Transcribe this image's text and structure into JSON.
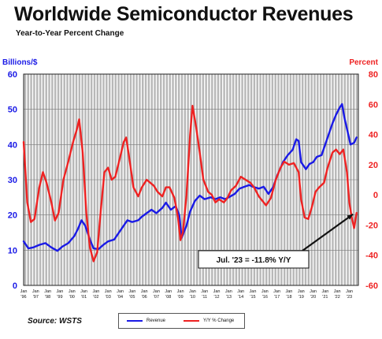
{
  "header": {
    "title": "Worldwide Semiconductor Revenues",
    "subtitle": "Year-to-Year Percent Change"
  },
  "footer": {
    "source": "Source: WSTS"
  },
  "colors": {
    "revenue": "#1a1ae6",
    "yoy": "#ee2222",
    "bars": "#b8b8b8",
    "grid": "#888888"
  },
  "chart_data": {
    "type": "line",
    "x_start": 1996.0,
    "x_end": 2023.75,
    "left_axis": {
      "label": "Billions/$",
      "min": 0,
      "max": 60,
      "ticks": [
        0,
        10,
        20,
        30,
        40,
        50,
        60
      ]
    },
    "right_axis": {
      "label": "Percent",
      "min": -60,
      "max": 80,
      "ticks": [
        -60,
        -40,
        -20,
        0,
        20,
        40,
        60,
        80
      ]
    },
    "tick_years": [
      "'96",
      "'97",
      "'98",
      "'99",
      "'00",
      "'01",
      "'02",
      "'03",
      "'04",
      "'05",
      "'06",
      "'07",
      "'08",
      "'09",
      "'10",
      "'11",
      "'12",
      "'13",
      "'14",
      "'15",
      "'16",
      "'17",
      "'18",
      "'19",
      "'20",
      "'21",
      "'22",
      "'23"
    ],
    "tick_month": "Jan",
    "annotation": {
      "text": "Jul. '23 = -11.8% Y/Y",
      "x": 2023.5,
      "y": -11.8
    },
    "legend": {
      "placement": "bottom"
    },
    "series": [
      {
        "name": "Revenue",
        "axis": "left",
        "color": "#1a1ae6",
        "points": [
          [
            1996.0,
            12.5
          ],
          [
            1996.4,
            10.5
          ],
          [
            1996.8,
            10.8
          ],
          [
            1997.3,
            11.5
          ],
          [
            1997.8,
            12
          ],
          [
            1998.3,
            10.8
          ],
          [
            1998.8,
            9.8
          ],
          [
            1999.2,
            11
          ],
          [
            1999.7,
            12
          ],
          [
            2000.2,
            14
          ],
          [
            2000.5,
            16
          ],
          [
            2000.8,
            18.5
          ],
          [
            2001.1,
            17
          ],
          [
            2001.5,
            13
          ],
          [
            2001.8,
            10.5
          ],
          [
            2002.2,
            10.3
          ],
          [
            2002.6,
            11.5
          ],
          [
            2003.0,
            12.5
          ],
          [
            2003.5,
            13
          ],
          [
            2003.8,
            14.5
          ],
          [
            2004.2,
            16.5
          ],
          [
            2004.6,
            18.5
          ],
          [
            2005.0,
            18
          ],
          [
            2005.5,
            18.5
          ],
          [
            2005.8,
            19.5
          ],
          [
            2006.2,
            20.5
          ],
          [
            2006.6,
            21.5
          ],
          [
            2007.0,
            20.5
          ],
          [
            2007.5,
            22
          ],
          [
            2007.8,
            23.5
          ],
          [
            2008.2,
            21.5
          ],
          [
            2008.6,
            22.5
          ],
          [
            2008.9,
            20
          ],
          [
            2009.1,
            13.5
          ],
          [
            2009.5,
            17
          ],
          [
            2009.8,
            21
          ],
          [
            2010.2,
            24
          ],
          [
            2010.6,
            25.5
          ],
          [
            2011.0,
            24.5
          ],
          [
            2011.5,
            25
          ],
          [
            2011.9,
            24.5
          ],
          [
            2012.3,
            25
          ],
          [
            2012.7,
            24.5
          ],
          [
            2013.0,
            25
          ],
          [
            2013.5,
            26
          ],
          [
            2013.9,
            27.5
          ],
          [
            2014.3,
            28
          ],
          [
            2014.7,
            28.5
          ],
          [
            2015.0,
            28
          ],
          [
            2015.5,
            27.5
          ],
          [
            2015.9,
            28
          ],
          [
            2016.3,
            26
          ],
          [
            2016.7,
            28
          ],
          [
            2017.0,
            31
          ],
          [
            2017.5,
            35
          ],
          [
            2017.9,
            37
          ],
          [
            2018.3,
            38.5
          ],
          [
            2018.6,
            41.5
          ],
          [
            2018.8,
            41
          ],
          [
            2019.0,
            35
          ],
          [
            2019.4,
            33
          ],
          [
            2019.7,
            34.5
          ],
          [
            2020.0,
            35
          ],
          [
            2020.3,
            36.5
          ],
          [
            2020.7,
            37
          ],
          [
            2021.0,
            40
          ],
          [
            2021.3,
            43
          ],
          [
            2021.6,
            46
          ],
          [
            2021.9,
            48.5
          ],
          [
            2022.2,
            50.5
          ],
          [
            2022.4,
            51.5
          ],
          [
            2022.6,
            47.5
          ],
          [
            2022.9,
            43
          ],
          [
            2023.1,
            40
          ],
          [
            2023.4,
            40.5
          ],
          [
            2023.6,
            42
          ]
        ]
      },
      {
        "name": "Y/Y % Change",
        "axis": "right",
        "color": "#ee2222",
        "points": [
          [
            1996.0,
            35
          ],
          [
            1996.3,
            -5
          ],
          [
            1996.6,
            -18
          ],
          [
            1996.9,
            -16
          ],
          [
            1997.3,
            5
          ],
          [
            1997.6,
            15
          ],
          [
            1997.9,
            8
          ],
          [
            1998.3,
            -5
          ],
          [
            1998.6,
            -17
          ],
          [
            1998.9,
            -12
          ],
          [
            1999.3,
            10
          ],
          [
            1999.7,
            22
          ],
          [
            2000.1,
            35
          ],
          [
            2000.4,
            43
          ],
          [
            2000.6,
            50
          ],
          [
            2000.9,
            28
          ],
          [
            2001.2,
            -12
          ],
          [
            2001.5,
            -35
          ],
          [
            2001.8,
            -44
          ],
          [
            2002.1,
            -38
          ],
          [
            2002.4,
            -10
          ],
          [
            2002.7,
            15
          ],
          [
            2003.0,
            18
          ],
          [
            2003.3,
            10
          ],
          [
            2003.6,
            12
          ],
          [
            2004.0,
            25
          ],
          [
            2004.3,
            35
          ],
          [
            2004.5,
            38
          ],
          [
            2004.8,
            22
          ],
          [
            2005.1,
            5
          ],
          [
            2005.5,
            -1
          ],
          [
            2005.8,
            5
          ],
          [
            2006.2,
            10
          ],
          [
            2006.5,
            8
          ],
          [
            2006.8,
            6
          ],
          [
            2007.1,
            2
          ],
          [
            2007.5,
            -1
          ],
          [
            2007.8,
            5
          ],
          [
            2008.1,
            5
          ],
          [
            2008.5,
            -2
          ],
          [
            2008.8,
            -15
          ],
          [
            2009.0,
            -30
          ],
          [
            2009.2,
            -25
          ],
          [
            2009.5,
            0
          ],
          [
            2009.8,
            40
          ],
          [
            2010.0,
            59
          ],
          [
            2010.3,
            45
          ],
          [
            2010.6,
            28
          ],
          [
            2010.9,
            10
          ],
          [
            2011.3,
            2
          ],
          [
            2011.6,
            0
          ],
          [
            2011.9,
            -5
          ],
          [
            2012.2,
            -3
          ],
          [
            2012.6,
            -5
          ],
          [
            2012.9,
            -2
          ],
          [
            2013.2,
            3
          ],
          [
            2013.6,
            6
          ],
          [
            2014.0,
            12
          ],
          [
            2014.4,
            10
          ],
          [
            2014.8,
            8
          ],
          [
            2015.1,
            5
          ],
          [
            2015.5,
            -1
          ],
          [
            2015.8,
            -4
          ],
          [
            2016.1,
            -7
          ],
          [
            2016.5,
            -2
          ],
          [
            2016.9,
            10
          ],
          [
            2017.3,
            18
          ],
          [
            2017.6,
            22
          ],
          [
            2018.0,
            20
          ],
          [
            2018.4,
            21
          ],
          [
            2018.8,
            15
          ],
          [
            2019.0,
            -3
          ],
          [
            2019.3,
            -15
          ],
          [
            2019.6,
            -16
          ],
          [
            2019.9,
            -8
          ],
          [
            2020.2,
            2
          ],
          [
            2020.5,
            5
          ],
          [
            2020.9,
            8
          ],
          [
            2021.2,
            18
          ],
          [
            2021.6,
            28
          ],
          [
            2021.9,
            30
          ],
          [
            2022.2,
            27
          ],
          [
            2022.5,
            30
          ],
          [
            2022.8,
            15
          ],
          [
            2023.0,
            -5
          ],
          [
            2023.2,
            -15
          ],
          [
            2023.4,
            -22
          ],
          [
            2023.6,
            -12
          ]
        ]
      }
    ]
  }
}
